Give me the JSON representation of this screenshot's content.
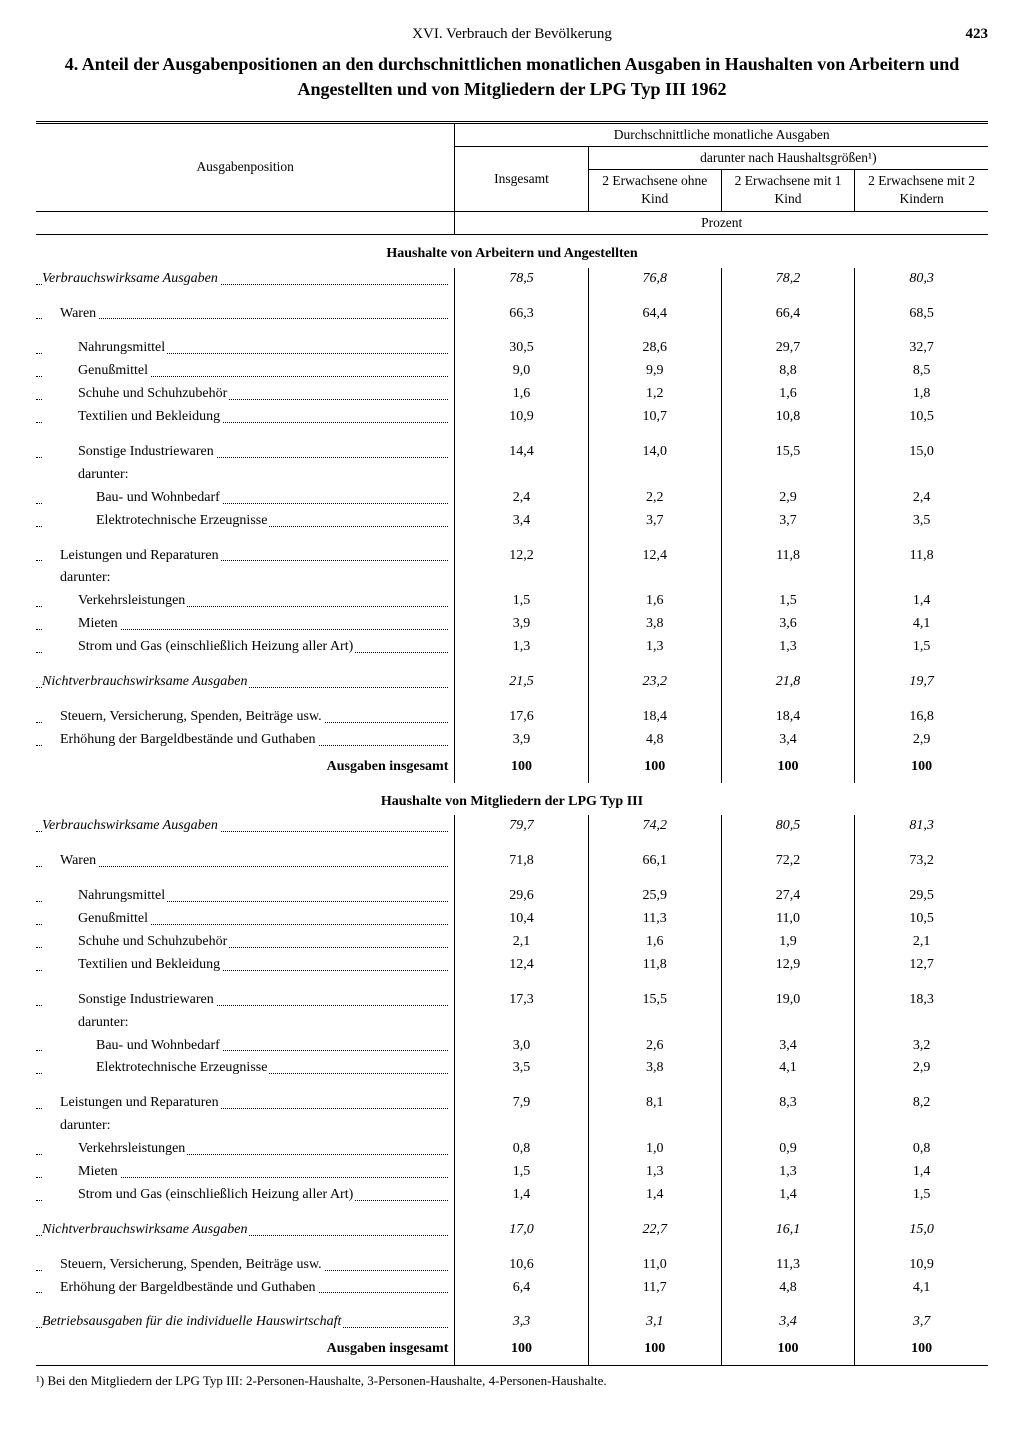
{
  "header": {
    "chapter": "XVI. Verbrauch der Bevölkerung",
    "page": "423"
  },
  "title": "4. Anteil der Ausgabenpositionen an den durchschnittlichen monatlichen Ausgaben in Haushalten von Arbeitern und Angestellten und von Mitgliedern der LPG Typ III 1962",
  "thead": {
    "label": "Ausgabenposition",
    "group": "Durchschnittliche monatliche Ausgaben",
    "subgroup": "darunter nach Haushaltsgrößen¹)",
    "c1": "Insgesamt",
    "c2": "2 Erwachsene ohne Kind",
    "c3": "2 Erwachsene mit 1 Kind",
    "c4": "2 Erwachsene mit 2 Kindern",
    "unit": "Prozent"
  },
  "sections": [
    {
      "title": "Haushalte von Arbeitern und Angestellten",
      "rows": [
        {
          "label": "Verbrauchswirksame Ausgaben",
          "indent": 0,
          "ital": true,
          "dots": true,
          "vals": [
            "78,5",
            "76,8",
            "78,2",
            "80,3"
          ],
          "ital_vals": true
        },
        {
          "spacer": true
        },
        {
          "label": "Waren",
          "indent": 1,
          "dots": true,
          "vals": [
            "66,3",
            "64,4",
            "66,4",
            "68,5"
          ]
        },
        {
          "spacer": true
        },
        {
          "label": "Nahrungsmittel",
          "indent": 2,
          "dots": true,
          "vals": [
            "30,5",
            "28,6",
            "29,7",
            "32,7"
          ]
        },
        {
          "label": "Genußmittel",
          "indent": 2,
          "dots": true,
          "vals": [
            "9,0",
            "9,9",
            "8,8",
            "8,5"
          ]
        },
        {
          "label": "Schuhe und Schuhzubehör",
          "indent": 2,
          "dots": true,
          "vals": [
            "1,6",
            "1,2",
            "1,6",
            "1,8"
          ]
        },
        {
          "label": "Textilien und Bekleidung",
          "indent": 2,
          "dots": true,
          "vals": [
            "10,9",
            "10,7",
            "10,8",
            "10,5"
          ]
        },
        {
          "spacer": true
        },
        {
          "label": "Sonstige Industriewaren",
          "indent": 2,
          "dots": true,
          "vals": [
            "14,4",
            "14,0",
            "15,5",
            "15,0"
          ]
        },
        {
          "label": "darunter:",
          "indent": 2,
          "dots": false,
          "vals": [
            "",
            "",
            "",
            ""
          ]
        },
        {
          "label": "Bau- und Wohnbedarf",
          "indent": 3,
          "dots": true,
          "vals": [
            "2,4",
            "2,2",
            "2,9",
            "2,4"
          ]
        },
        {
          "label": "Elektrotechnische Erzeugnisse",
          "indent": 3,
          "dots": true,
          "vals": [
            "3,4",
            "3,7",
            "3,7",
            "3,5"
          ]
        },
        {
          "spacer": true
        },
        {
          "label": "Leistungen und Reparaturen",
          "indent": 1,
          "dots": true,
          "vals": [
            "12,2",
            "12,4",
            "11,8",
            "11,8"
          ]
        },
        {
          "label": "darunter:",
          "indent": 1,
          "dots": false,
          "vals": [
            "",
            "",
            "",
            ""
          ]
        },
        {
          "label": "Verkehrsleistungen",
          "indent": 2,
          "dots": true,
          "vals": [
            "1,5",
            "1,6",
            "1,5",
            "1,4"
          ]
        },
        {
          "label": "Mieten",
          "indent": 2,
          "dots": true,
          "vals": [
            "3,9",
            "3,8",
            "3,6",
            "4,1"
          ]
        },
        {
          "label": "Strom und Gas (einschließlich Heizung aller Art)",
          "indent": 2,
          "dots": true,
          "vals": [
            "1,3",
            "1,3",
            "1,3",
            "1,5"
          ]
        },
        {
          "spacer": true
        },
        {
          "label": "Nichtverbrauchswirksame Ausgaben",
          "indent": 0,
          "ital": true,
          "dots": true,
          "vals": [
            "21,5",
            "23,2",
            "21,8",
            "19,7"
          ],
          "ital_vals": true
        },
        {
          "spacer": true
        },
        {
          "label": "Steuern, Versicherung, Spenden, Beiträge usw.",
          "indent": 1,
          "dots": true,
          "vals": [
            "17,6",
            "18,4",
            "18,4",
            "16,8"
          ]
        },
        {
          "label": "Erhöhung der Bargeldbestände und Guthaben",
          "indent": 1,
          "dots": true,
          "vals": [
            "3,9",
            "4,8",
            "3,4",
            "2,9"
          ]
        }
      ],
      "sum": {
        "label": "Ausgaben insgesamt",
        "vals": [
          "100",
          "100",
          "100",
          "100"
        ]
      }
    },
    {
      "title": "Haushalte von Mitgliedern der LPG Typ III",
      "rows": [
        {
          "label": "Verbrauchswirksame Ausgaben",
          "indent": 0,
          "ital": true,
          "dots": true,
          "vals": [
            "79,7",
            "74,2",
            "80,5",
            "81,3"
          ],
          "ital_vals": true
        },
        {
          "spacer": true
        },
        {
          "label": "Waren",
          "indent": 1,
          "dots": true,
          "vals": [
            "71,8",
            "66,1",
            "72,2",
            "73,2"
          ]
        },
        {
          "spacer": true
        },
        {
          "label": "Nahrungsmittel",
          "indent": 2,
          "dots": true,
          "vals": [
            "29,6",
            "25,9",
            "27,4",
            "29,5"
          ]
        },
        {
          "label": "Genußmittel",
          "indent": 2,
          "dots": true,
          "vals": [
            "10,4",
            "11,3",
            "11,0",
            "10,5"
          ]
        },
        {
          "label": "Schuhe und Schuhzubehör",
          "indent": 2,
          "dots": true,
          "vals": [
            "2,1",
            "1,6",
            "1,9",
            "2,1"
          ]
        },
        {
          "label": "Textilien und Bekleidung",
          "indent": 2,
          "dots": true,
          "vals": [
            "12,4",
            "11,8",
            "12,9",
            "12,7"
          ]
        },
        {
          "spacer": true
        },
        {
          "label": "Sonstige Industriewaren",
          "indent": 2,
          "dots": true,
          "vals": [
            "17,3",
            "15,5",
            "19,0",
            "18,3"
          ]
        },
        {
          "label": "darunter:",
          "indent": 2,
          "dots": false,
          "vals": [
            "",
            "",
            "",
            ""
          ]
        },
        {
          "label": "Bau- und Wohnbedarf",
          "indent": 3,
          "dots": true,
          "vals": [
            "3,0",
            "2,6",
            "3,4",
            "3,2"
          ]
        },
        {
          "label": "Elektrotechnische Erzeugnisse",
          "indent": 3,
          "dots": true,
          "vals": [
            "3,5",
            "3,8",
            "4,1",
            "2,9"
          ]
        },
        {
          "spacer": true
        },
        {
          "label": "Leistungen und Reparaturen",
          "indent": 1,
          "dots": true,
          "vals": [
            "7,9",
            "8,1",
            "8,3",
            "8,2"
          ]
        },
        {
          "label": "darunter:",
          "indent": 1,
          "dots": false,
          "vals": [
            "",
            "",
            "",
            ""
          ]
        },
        {
          "label": "Verkehrsleistungen",
          "indent": 2,
          "dots": true,
          "vals": [
            "0,8",
            "1,0",
            "0,9",
            "0,8"
          ]
        },
        {
          "label": "Mieten",
          "indent": 2,
          "dots": true,
          "vals": [
            "1,5",
            "1,3",
            "1,3",
            "1,4"
          ]
        },
        {
          "label": "Strom und Gas (einschließlich Heizung aller Art)",
          "indent": 2,
          "dots": true,
          "vals": [
            "1,4",
            "1,4",
            "1,4",
            "1,5"
          ]
        },
        {
          "spacer": true
        },
        {
          "label": "Nichtverbrauchswirksame Ausgaben",
          "indent": 0,
          "ital": true,
          "dots": true,
          "vals": [
            "17,0",
            "22,7",
            "16,1",
            "15,0"
          ],
          "ital_vals": true
        },
        {
          "spacer": true
        },
        {
          "label": "Steuern, Versicherung, Spenden, Beiträge usw.",
          "indent": 1,
          "dots": true,
          "vals": [
            "10,6",
            "11,0",
            "11,3",
            "10,9"
          ]
        },
        {
          "label": "Erhöhung der Bargeldbestände und Guthaben",
          "indent": 1,
          "dots": true,
          "vals": [
            "6,4",
            "11,7",
            "4,8",
            "4,1"
          ]
        },
        {
          "spacer": true
        },
        {
          "label": "Betriebsausgaben für die individuelle Hauswirtschaft",
          "indent": 0,
          "ital": true,
          "dots": true,
          "vals": [
            "3,3",
            "3,1",
            "3,4",
            "3,7"
          ],
          "ital_vals": true
        }
      ],
      "sum": {
        "label": "Ausgaben insgesamt",
        "vals": [
          "100",
          "100",
          "100",
          "100"
        ]
      }
    }
  ],
  "footnote": "¹) Bei den Mitgliedern der LPG Typ III: 2-Personen-Haushalte, 3-Personen-Haushalte, 4-Personen-Haushalte."
}
